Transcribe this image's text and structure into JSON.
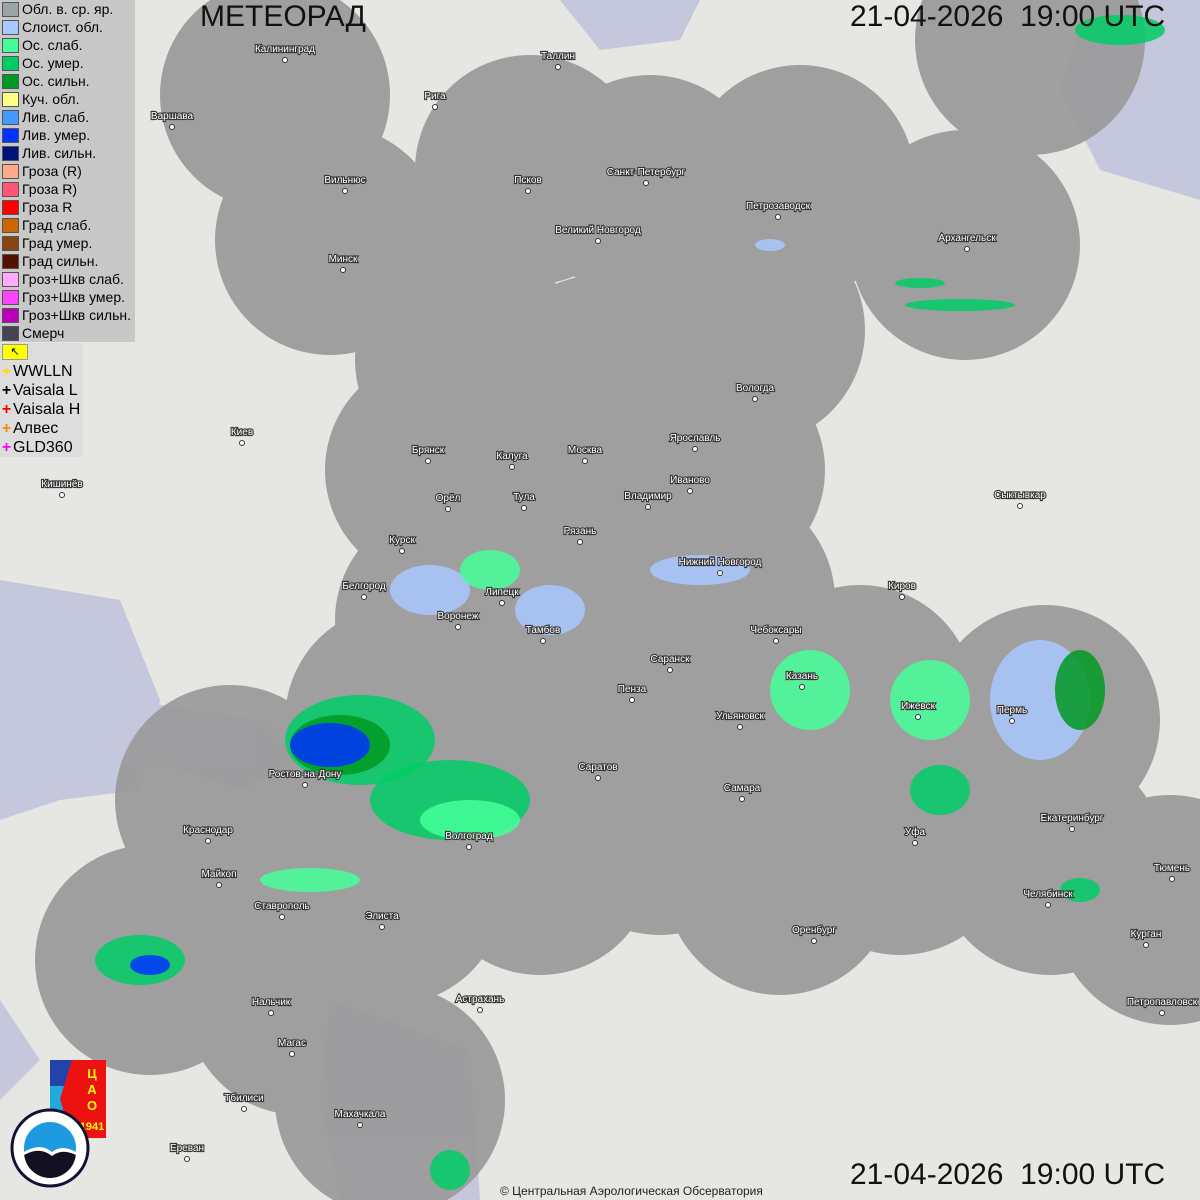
{
  "header": {
    "title": "МЕТЕОРАД",
    "datetime_top": "21-04-2026  19:00 UTC",
    "datetime_bottom": "21-04-2026  19:00 UTC"
  },
  "legend": [
    {
      "label": "Обл. в. ср. яр.",
      "color": "#9aa4a8"
    },
    {
      "label": "Слоист. обл.",
      "color": "#a8c8ff"
    },
    {
      "label": "Ос. слаб.",
      "color": "#44ff99"
    },
    {
      "label": "Ос. умер.",
      "color": "#00cc66"
    },
    {
      "label": "Ос. сильн.",
      "color": "#009922"
    },
    {
      "label": "Куч. обл.",
      "color": "#ffff88"
    },
    {
      "label": "Лив. слаб.",
      "color": "#4499ff"
    },
    {
      "label": "Лив. умер.",
      "color": "#0033ff"
    },
    {
      "label": "Лив. сильн.",
      "color": "#001177"
    },
    {
      "label": "Гроза (R)",
      "color": "#ffaa88"
    },
    {
      "label": "Гроза R)",
      "color": "#ff5577"
    },
    {
      "label": "Гроза R",
      "color": "#ff0000"
    },
    {
      "label": "Град слаб.",
      "color": "#cc6600"
    },
    {
      "label": "Град умер.",
      "color": "#884411"
    },
    {
      "label": "Град сильн.",
      "color": "#551100"
    },
    {
      "label": "Гроз+Шкв слаб.",
      "color": "#ffaaff"
    },
    {
      "label": "Гроз+Шкв умер.",
      "color": "#ff44ff"
    },
    {
      "label": "Гроз+Шкв сильн.",
      "color": "#bb00bb"
    },
    {
      "label": "Смерч",
      "color": "#444455"
    }
  ],
  "lightning": [
    {
      "label": "WWLLN",
      "color": "#ffdd00"
    },
    {
      "label": "Vaisala L",
      "color": "#000000"
    },
    {
      "label": "Vaisala H",
      "color": "#ff0000"
    },
    {
      "label": "Алвес",
      "color": "#ff8800"
    },
    {
      "label": "GLD360",
      "color": "#ff00ff"
    }
  ],
  "flag_icon": "corner-arrow-icon",
  "cities": [
    "Калининград",
    "Таллин",
    "Рига",
    "Варшава",
    "Санкт-Петербург",
    "Псков",
    "Вильнюс",
    "Петрозаводск",
    "Великий Новгород",
    "Архангельск",
    "Минск",
    "Вологда",
    "Киев",
    "Москва",
    "Ярославль",
    "Брянск",
    "Калуга",
    "Иваново",
    "Кишинёв",
    "Орёл",
    "Тула",
    "Владимир",
    "Сыктывкар",
    "Рязань",
    "Курск",
    "Нижний Новгород",
    "Белгород",
    "Липецк",
    "Киров",
    "Воронеж",
    "Тамбов",
    "Чебоксары",
    "Саранск",
    "Казань",
    "Пенза",
    "Ижевск",
    "Пермь",
    "Ульяновск",
    "Ростов-на-Дону",
    "Саратов",
    "Самара",
    "Краснодар",
    "Екатеринбург",
    "Уфа",
    "Волгоград",
    "Тюмень",
    "Майкоп",
    "Челябинск",
    "Ставрополь",
    "Элиста",
    "Оренбург",
    "Курган",
    "Нальчик",
    "Астрахань",
    "Петропавловск",
    "Магас",
    "Тбилиси",
    "Махачкала",
    "Ереван"
  ],
  "logos": {
    "cao": "ЦАО 1941",
    "roshydromet": "РОСГИДРОМЕТ ROSHYDROMET"
  },
  "copyright": "© Центральная Аэрологическая Обсерватория"
}
